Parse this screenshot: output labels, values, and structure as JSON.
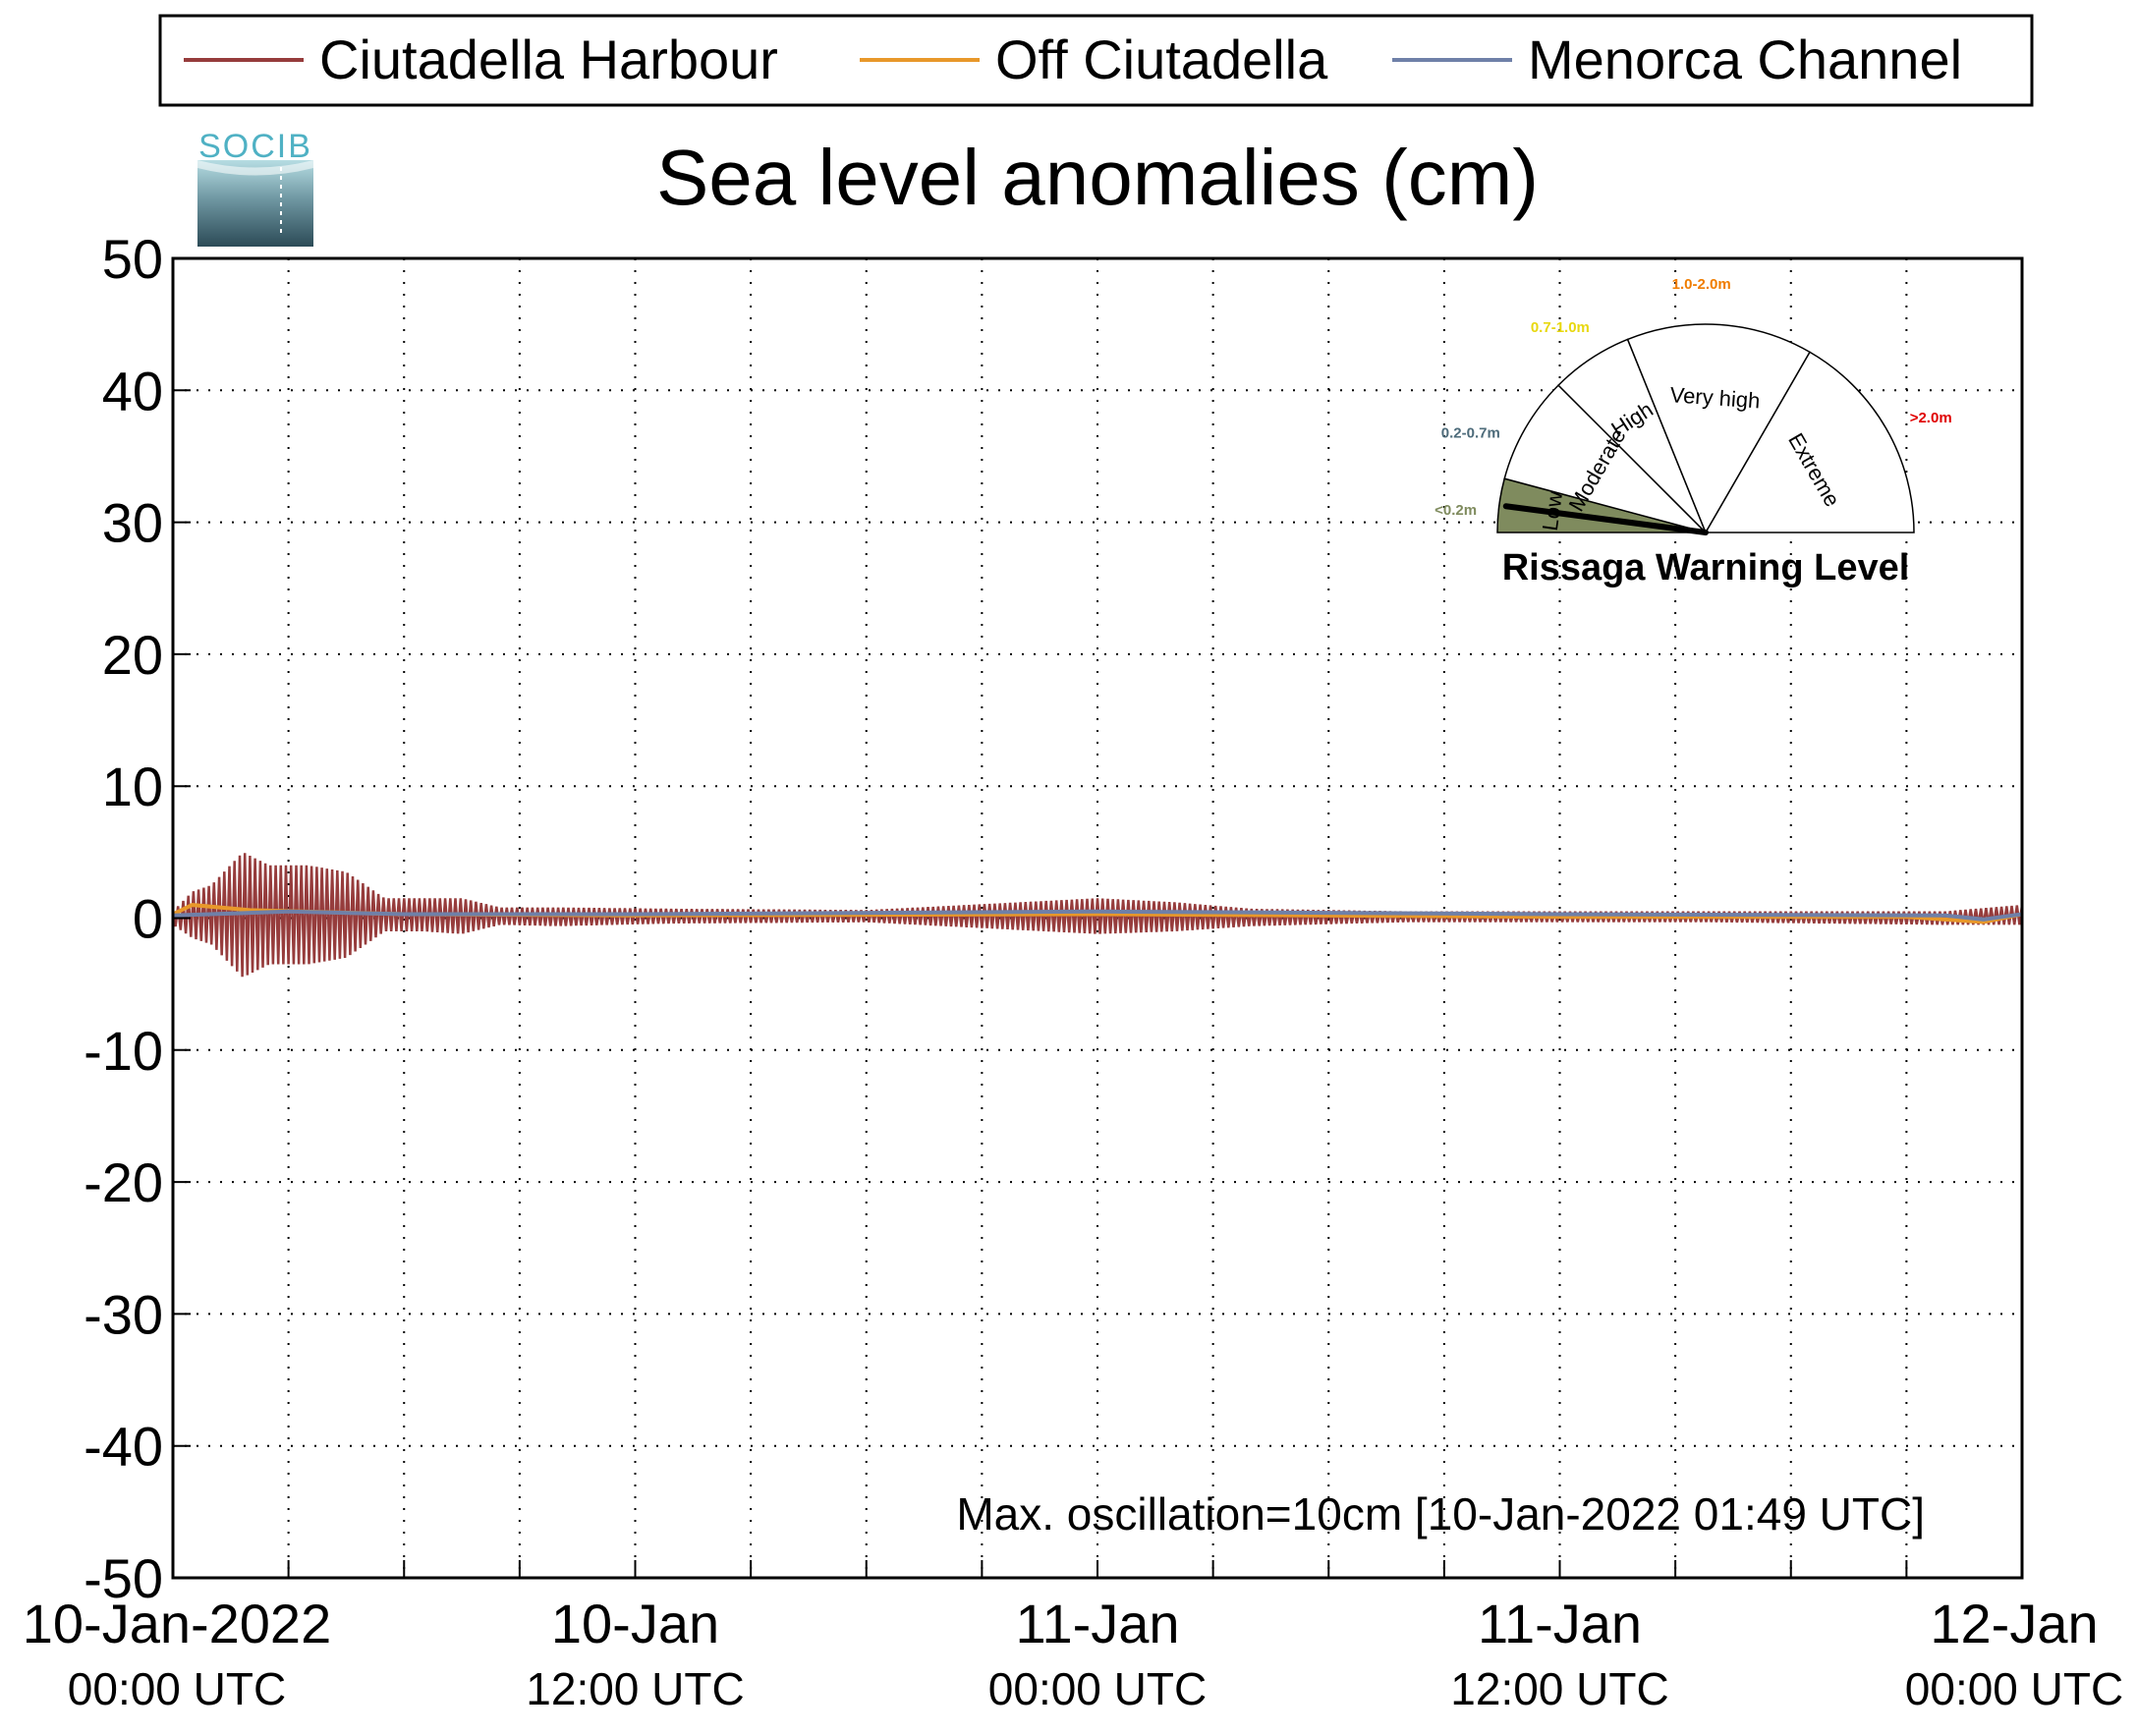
{
  "chart_data": {
    "type": "line",
    "title": "Sea level anomalies (cm)",
    "ylim": [
      -50,
      50
    ],
    "y_ticks": [
      "50",
      "40",
      "30",
      "20",
      "10",
      "0",
      "-10",
      "-20",
      "-30",
      "-40",
      "-50"
    ],
    "xlim": [
      "2022-01-10T00:00Z",
      "2022-01-12T00:00Z"
    ],
    "x_ticks": [
      {
        "t": "2022-01-10T00:00Z",
        "line1": "10-Jan-2022",
        "line2": "00:00 UTC"
      },
      {
        "t": "2022-01-10T12:00Z",
        "line1": "10-Jan",
        "line2": "12:00 UTC"
      },
      {
        "t": "2022-01-11T00:00Z",
        "line1": "11-Jan",
        "line2": "00:00 UTC"
      },
      {
        "t": "2022-01-11T12:00Z",
        "line1": "11-Jan",
        "line2": "12:00 UTC"
      },
      {
        "t": "2022-01-12T00:00Z",
        "line1": "12-Jan",
        "line2": "00:00 UTC"
      }
    ],
    "grid": true,
    "legend_position": "top",
    "series": [
      {
        "name": "Ciutadella Harbour",
        "color": "#963c3c",
        "envelope": [
          {
            "t": "2022-01-10T00:00Z",
            "min": -0.5,
            "max": 0.5
          },
          {
            "t": "2022-01-10T00:30Z",
            "min": -1.5,
            "max": 2.0
          },
          {
            "t": "2022-01-10T01:00Z",
            "min": -2.0,
            "max": 2.5
          },
          {
            "t": "2022-01-10T01:49Z",
            "min": -4.5,
            "max": 5.0
          },
          {
            "t": "2022-01-10T02:30Z",
            "min": -3.5,
            "max": 4.0
          },
          {
            "t": "2022-01-10T03:30Z",
            "min": -3.5,
            "max": 4.0
          },
          {
            "t": "2022-01-10T04:30Z",
            "min": -3.0,
            "max": 3.5
          },
          {
            "t": "2022-01-10T05:30Z",
            "min": -1.0,
            "max": 1.5
          },
          {
            "t": "2022-01-10T06:30Z",
            "min": -1.0,
            "max": 1.5
          },
          {
            "t": "2022-01-10T07:30Z",
            "min": -1.2,
            "max": 1.5
          },
          {
            "t": "2022-01-10T08:30Z",
            "min": -0.5,
            "max": 0.8
          },
          {
            "t": "2022-01-10T10:00Z",
            "min": -0.6,
            "max": 0.8
          },
          {
            "t": "2022-01-10T13:00Z",
            "min": -0.4,
            "max": 0.7
          },
          {
            "t": "2022-01-10T18:00Z",
            "min": -0.3,
            "max": 0.6
          },
          {
            "t": "2022-01-11T00:00Z",
            "min": -1.2,
            "max": 1.5
          },
          {
            "t": "2022-01-11T02:00Z",
            "min": -1.0,
            "max": 1.2
          },
          {
            "t": "2022-01-11T04:00Z",
            "min": -0.6,
            "max": 0.7
          },
          {
            "t": "2022-01-11T08:00Z",
            "min": -0.3,
            "max": 0.5
          },
          {
            "t": "2022-01-11T16:00Z",
            "min": -0.3,
            "max": 0.5
          },
          {
            "t": "2022-01-11T22:00Z",
            "min": -0.5,
            "max": 0.5
          },
          {
            "t": "2022-01-12T00:00Z",
            "min": -0.5,
            "max": 1.0
          }
        ]
      },
      {
        "name": "Off Ciutadella",
        "color": "#e8982a",
        "values": [
          {
            "t": "2022-01-10T00:00Z",
            "v": 0.3
          },
          {
            "t": "2022-01-10T00:30Z",
            "v": 1.0
          },
          {
            "t": "2022-01-10T02:00Z",
            "v": 0.6
          },
          {
            "t": "2022-01-10T06:00Z",
            "v": 0.3
          },
          {
            "t": "2022-01-10T12:00Z",
            "v": 0.2
          },
          {
            "t": "2022-01-11T00:00Z",
            "v": 0.3
          },
          {
            "t": "2022-01-11T12:00Z",
            "v": 0.1
          },
          {
            "t": "2022-01-11T21:00Z",
            "v": 0.1
          },
          {
            "t": "2022-01-11T23:00Z",
            "v": -0.3
          },
          {
            "t": "2022-01-12T00:00Z",
            "v": 0.3
          }
        ]
      },
      {
        "name": "Menorca Channel",
        "color": "#6f80a8",
        "values": [
          {
            "t": "2022-01-10T00:00Z",
            "v": 0.2
          },
          {
            "t": "2022-01-10T03:00Z",
            "v": 0.5
          },
          {
            "t": "2022-01-10T06:00Z",
            "v": 0.3
          },
          {
            "t": "2022-01-10T12:00Z",
            "v": 0.3
          },
          {
            "t": "2022-01-11T00:00Z",
            "v": 0.5
          },
          {
            "t": "2022-01-11T12:00Z",
            "v": 0.3
          },
          {
            "t": "2022-01-11T22:00Z",
            "v": 0.2
          },
          {
            "t": "2022-01-11T23:00Z",
            "v": -0.1
          },
          {
            "t": "2022-01-12T00:00Z",
            "v": 0.3
          }
        ]
      }
    ],
    "annotation": "Max. oscillation=10cm [10-Jan-2022 01:49 UTC]",
    "annotation_color": "#963c3c"
  },
  "logo_text": "SOCIB",
  "gauge": {
    "title": "Rissaga Warning Level",
    "current_level": "Low",
    "levels": [
      {
        "name": "Low",
        "range": "<0.2m",
        "color": "#7f8b5e"
      },
      {
        "name": "Moderate",
        "range": "0.2-0.7m",
        "color": "#4d6b7a"
      },
      {
        "name": "High",
        "range": "0.7-1.0m",
        "color": "#e8d80f"
      },
      {
        "name": "Very high",
        "range": "1.0-2.0m",
        "color": "#f07d00"
      },
      {
        "name": "Extreme",
        "range": ">2.0m",
        "color": "#e00000"
      }
    ]
  }
}
